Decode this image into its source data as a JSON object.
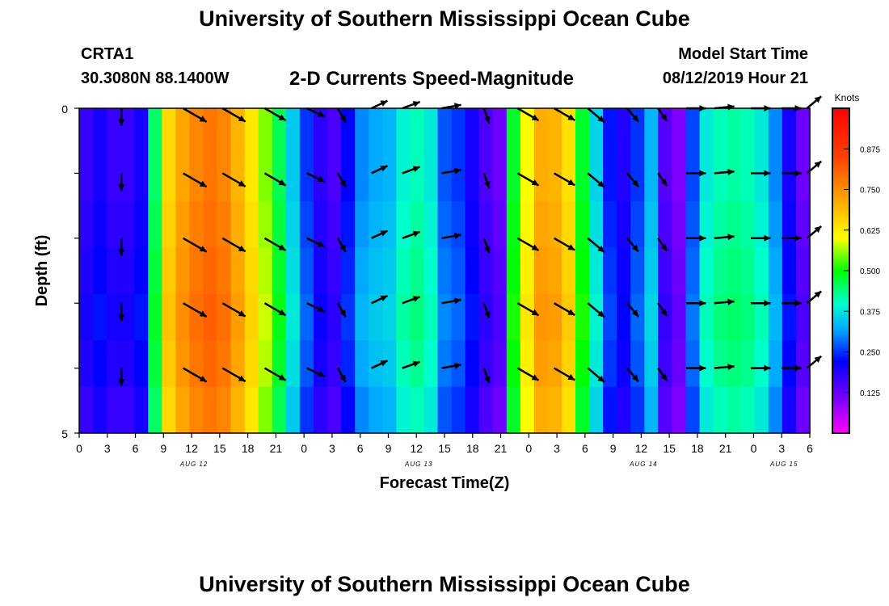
{
  "header": {
    "title": "University of Southern Mississippi Ocean Cube",
    "station_id": "CRTA1",
    "coords": "30.3080N 88.1400W",
    "chart_title": "2-D Currents Speed-Magnitude",
    "model_start_label": "Model Start Time",
    "model_start_value": "08/12/2019 Hour 21"
  },
  "footer": {
    "title": "University of Southern Mississippi Ocean Cube"
  },
  "chart_data": {
    "type": "heatmap",
    "title": "2-D Currents Speed-Magnitude",
    "xlabel": "Forecast Time(Z)",
    "ylabel": "Depth (ft)",
    "x_tick_labels": [
      "0",
      "3",
      "6",
      "9",
      "12",
      "15",
      "18",
      "21",
      "0",
      "3",
      "6",
      "9",
      "12",
      "15",
      "18",
      "21",
      "0",
      "3",
      "6",
      "9",
      "12",
      "15",
      "18",
      "21",
      "0",
      "3",
      "6"
    ],
    "x_date_labels": [
      {
        "text": "AUG 12",
        "tick_index": 4
      },
      {
        "text": "AUG 13",
        "tick_index": 12
      },
      {
        "text": "AUG 14",
        "tick_index": 20
      },
      {
        "text": "AUG 15",
        "tick_index": 25
      }
    ],
    "y_tick_labels": [
      "0",
      "5"
    ],
    "ylim": [
      0,
      5
    ],
    "colorbar": {
      "title": "Knots",
      "range": [
        0.0,
        1.0
      ],
      "tick_labels": [
        "0.875",
        "0.750",
        "0.625",
        "0.500",
        "0.375",
        "0.250",
        "0.125"
      ],
      "tick_values": [
        0.875,
        0.75,
        0.625,
        0.5,
        0.375,
        0.25,
        0.125
      ]
    },
    "speed_profile_knots": [
      0.17,
      0.2,
      0.17,
      0.17,
      0.2,
      0.45,
      0.65,
      0.72,
      0.76,
      0.78,
      0.76,
      0.7,
      0.63,
      0.55,
      0.46,
      0.35,
      0.25,
      0.18,
      0.15,
      0.22,
      0.3,
      0.32,
      0.33,
      0.39,
      0.41,
      0.38,
      0.27,
      0.25,
      0.2,
      0.15,
      0.12,
      0.48,
      0.6,
      0.71,
      0.7,
      0.64,
      0.48,
      0.36,
      0.23,
      0.19,
      0.25,
      0.33,
      0.14,
      0.1,
      0.26,
      0.38,
      0.41,
      0.42,
      0.41,
      0.38,
      0.3,
      0.2,
      0.12
    ],
    "speed_depth_offsets_knots": [
      0.0,
      0.0,
      0.01,
      0.02,
      0.03,
      0.02,
      0.0
    ],
    "vector_times_index": [
      1.5,
      3.7,
      5.1,
      6.6,
      8.1,
      9.2,
      10.4,
      11.5,
      12.9,
      14.4,
      15.6,
      16.9,
      18.1,
      19.5,
      20.6,
      21.6,
      22.6,
      23.9,
      25.0,
      25.9
    ],
    "vector_depths_ft": [
      0.0,
      1.0,
      2.0,
      3.0,
      4.0
    ],
    "vector_angles_deg": [
      90,
      30,
      30,
      30,
      25,
      60,
      -25,
      -20,
      -10,
      70,
      30,
      30,
      40,
      50,
      55,
      0,
      -5,
      0,
      0,
      -40
    ],
    "vector_speeds_knots": [
      0.3,
      0.75,
      0.72,
      0.62,
      0.4,
      0.22,
      0.3,
      0.35,
      0.4,
      0.22,
      0.62,
      0.6,
      0.5,
      0.3,
      0.2,
      0.4,
      0.42,
      0.4,
      0.4,
      0.35
    ]
  }
}
